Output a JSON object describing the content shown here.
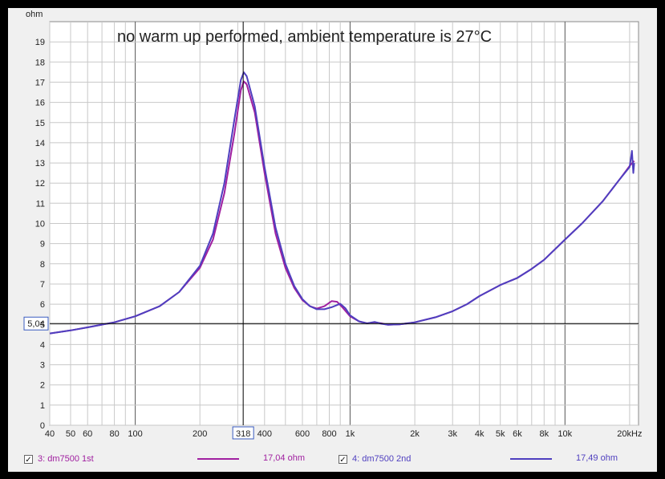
{
  "chart_data": {
    "type": "line",
    "title": "no warm up performed, ambient temperature is 27°C",
    "ylabel": "ohm",
    "xlabel": "",
    "x_scale": "log",
    "xlim": [
      40,
      22000
    ],
    "ylim": [
      0,
      20
    ],
    "x_tick_values": [
      40,
      50,
      60,
      80,
      100,
      200,
      318,
      400,
      600,
      800,
      1000,
      2000,
      3000,
      4000,
      5000,
      6000,
      8000,
      10000,
      20000
    ],
    "x_tick_labels": [
      "40",
      "50",
      "60",
      "80",
      "100",
      "200",
      "318",
      "400",
      "600",
      "800",
      "1k",
      "2k",
      "3k",
      "4k",
      "5k",
      "6k",
      "8k",
      "10k",
      "20kHz"
    ],
    "y_ticks": [
      0,
      1,
      2,
      3,
      4,
      5,
      6,
      7,
      8,
      9,
      10,
      11,
      12,
      13,
      14,
      15,
      16,
      17,
      18,
      19
    ],
    "cursor": {
      "x": 318,
      "x_label": "318",
      "y": 5.04,
      "y_label": "5,04"
    },
    "grid": true,
    "legend_placement": "bottom",
    "series": [
      {
        "name": "3: dm7500 1st",
        "readout": "17,04 ohm",
        "color": "#a020a0",
        "points": [
          [
            40,
            4.55
          ],
          [
            50,
            4.7
          ],
          [
            60,
            4.85
          ],
          [
            80,
            5.1
          ],
          [
            100,
            5.4
          ],
          [
            130,
            5.9
          ],
          [
            160,
            6.6
          ],
          [
            200,
            7.8
          ],
          [
            230,
            9.2
          ],
          [
            260,
            11.5
          ],
          [
            290,
            14.5
          ],
          [
            310,
            16.6
          ],
          [
            320,
            17.04
          ],
          [
            330,
            16.9
          ],
          [
            360,
            15.5
          ],
          [
            400,
            12.5
          ],
          [
            450,
            9.5
          ],
          [
            500,
            7.8
          ],
          [
            550,
            6.8
          ],
          [
            600,
            6.2
          ],
          [
            650,
            5.9
          ],
          [
            700,
            5.78
          ],
          [
            760,
            5.9
          ],
          [
            820,
            6.15
          ],
          [
            870,
            6.12
          ],
          [
            920,
            5.85
          ],
          [
            1000,
            5.4
          ],
          [
            1100,
            5.15
          ],
          [
            1200,
            5.05
          ],
          [
            1300,
            5.1
          ],
          [
            1400,
            5.05
          ],
          [
            1500,
            4.98
          ],
          [
            1700,
            5.0
          ],
          [
            2000,
            5.1
          ],
          [
            2500,
            5.35
          ],
          [
            3000,
            5.65
          ],
          [
            3500,
            6.0
          ],
          [
            4000,
            6.4
          ],
          [
            5000,
            6.95
          ],
          [
            6000,
            7.3
          ],
          [
            7000,
            7.75
          ],
          [
            8000,
            8.2
          ],
          [
            10000,
            9.2
          ],
          [
            12000,
            10.0
          ],
          [
            15000,
            11.1
          ],
          [
            18000,
            12.2
          ],
          [
            20000,
            12.85
          ],
          [
            21000,
            13.1
          ]
        ]
      },
      {
        "name": "4: dm7500 2nd",
        "readout": "17,49 ohm",
        "color": "#4f3fbf",
        "points": [
          [
            40,
            4.55
          ],
          [
            50,
            4.7
          ],
          [
            60,
            4.85
          ],
          [
            80,
            5.1
          ],
          [
            100,
            5.4
          ],
          [
            130,
            5.9
          ],
          [
            160,
            6.6
          ],
          [
            200,
            7.9
          ],
          [
            230,
            9.5
          ],
          [
            260,
            12.0
          ],
          [
            290,
            15.2
          ],
          [
            310,
            17.1
          ],
          [
            320,
            17.49
          ],
          [
            330,
            17.3
          ],
          [
            360,
            15.8
          ],
          [
            400,
            12.8
          ],
          [
            450,
            9.8
          ],
          [
            500,
            8.0
          ],
          [
            550,
            6.9
          ],
          [
            600,
            6.25
          ],
          [
            650,
            5.9
          ],
          [
            700,
            5.75
          ],
          [
            760,
            5.75
          ],
          [
            820,
            5.85
          ],
          [
            900,
            6.02
          ],
          [
            950,
            5.8
          ],
          [
            1000,
            5.45
          ],
          [
            1100,
            5.15
          ],
          [
            1200,
            5.05
          ],
          [
            1300,
            5.12
          ],
          [
            1400,
            5.03
          ],
          [
            1500,
            4.98
          ],
          [
            1700,
            5.0
          ],
          [
            2000,
            5.1
          ],
          [
            2500,
            5.35
          ],
          [
            3000,
            5.65
          ],
          [
            3500,
            6.0
          ],
          [
            4000,
            6.4
          ],
          [
            5000,
            6.95
          ],
          [
            6000,
            7.3
          ],
          [
            7000,
            7.75
          ],
          [
            8000,
            8.2
          ],
          [
            10000,
            9.2
          ],
          [
            12000,
            10.0
          ],
          [
            15000,
            11.1
          ],
          [
            18000,
            12.2
          ],
          [
            20000,
            12.8
          ],
          [
            20500,
            13.6
          ],
          [
            20800,
            12.5
          ],
          [
            21000,
            13.0
          ]
        ]
      }
    ]
  }
}
